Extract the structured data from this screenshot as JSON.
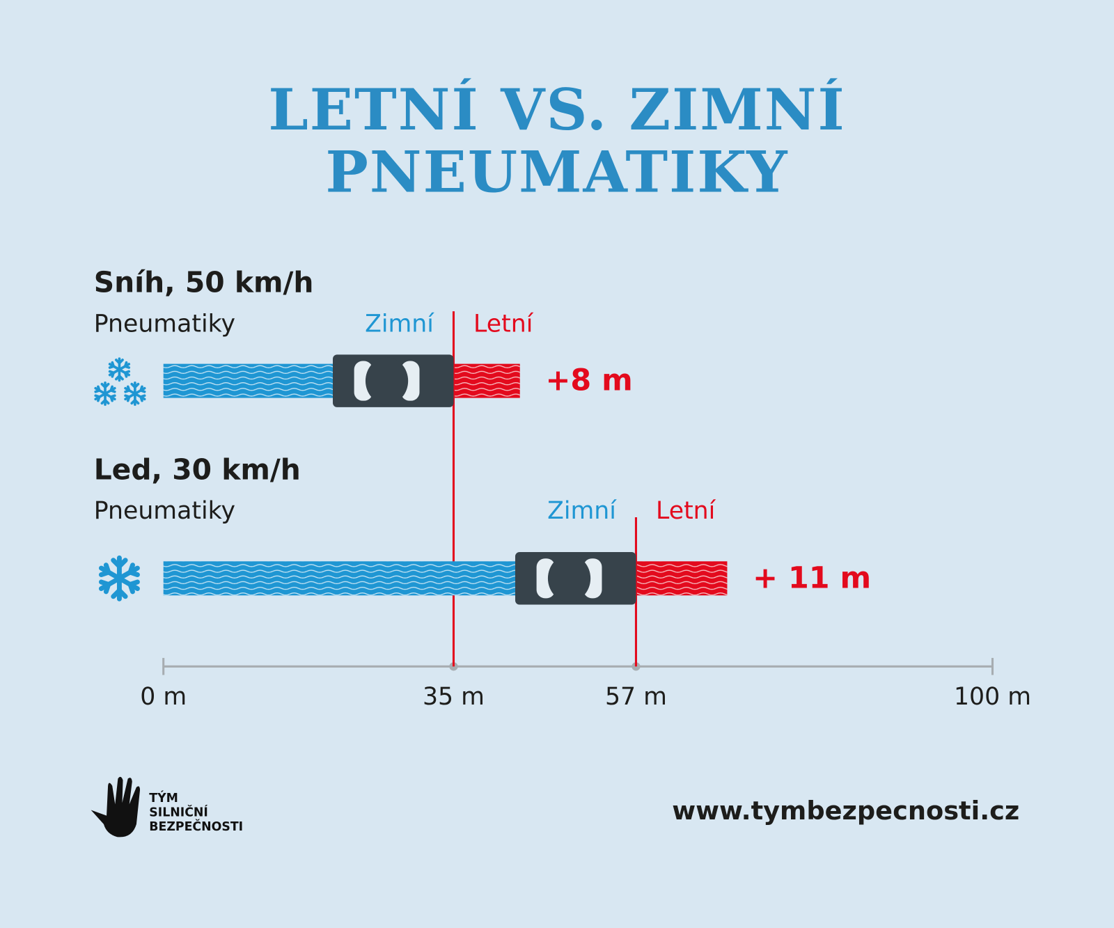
{
  "chart_data": {
    "type": "bar",
    "orientation": "horizontal",
    "stacked": true,
    "title": "LETNÍ VS. ZIMNÍ PNEUMATIKY",
    "categories": [
      "Sníh, 50 km/h",
      "Led, 30 km/h"
    ],
    "legend_title": "Pneumatiky",
    "series": [
      {
        "name": "Zimní",
        "color": "#1f96d3",
        "values": [
          35,
          57
        ]
      },
      {
        "name": "Letní",
        "color": "#e30a1d",
        "values": [
          8,
          11
        ],
        "value_labels": [
          "+8 m",
          "+ 11 m"
        ]
      }
    ],
    "xlim": [
      0,
      100
    ],
    "xticks": [
      {
        "value": 0,
        "label": "0 m"
      },
      {
        "value": 35,
        "label": "35 m"
      },
      {
        "value": 57,
        "label": "57 m"
      },
      {
        "value": 100,
        "label": "100 m"
      }
    ]
  },
  "footer": {
    "logo": [
      "TÝM",
      "SILNIČNÍ",
      "BEZPEČNOSTI"
    ],
    "url": "www.tymbezpecnosti.cz"
  }
}
